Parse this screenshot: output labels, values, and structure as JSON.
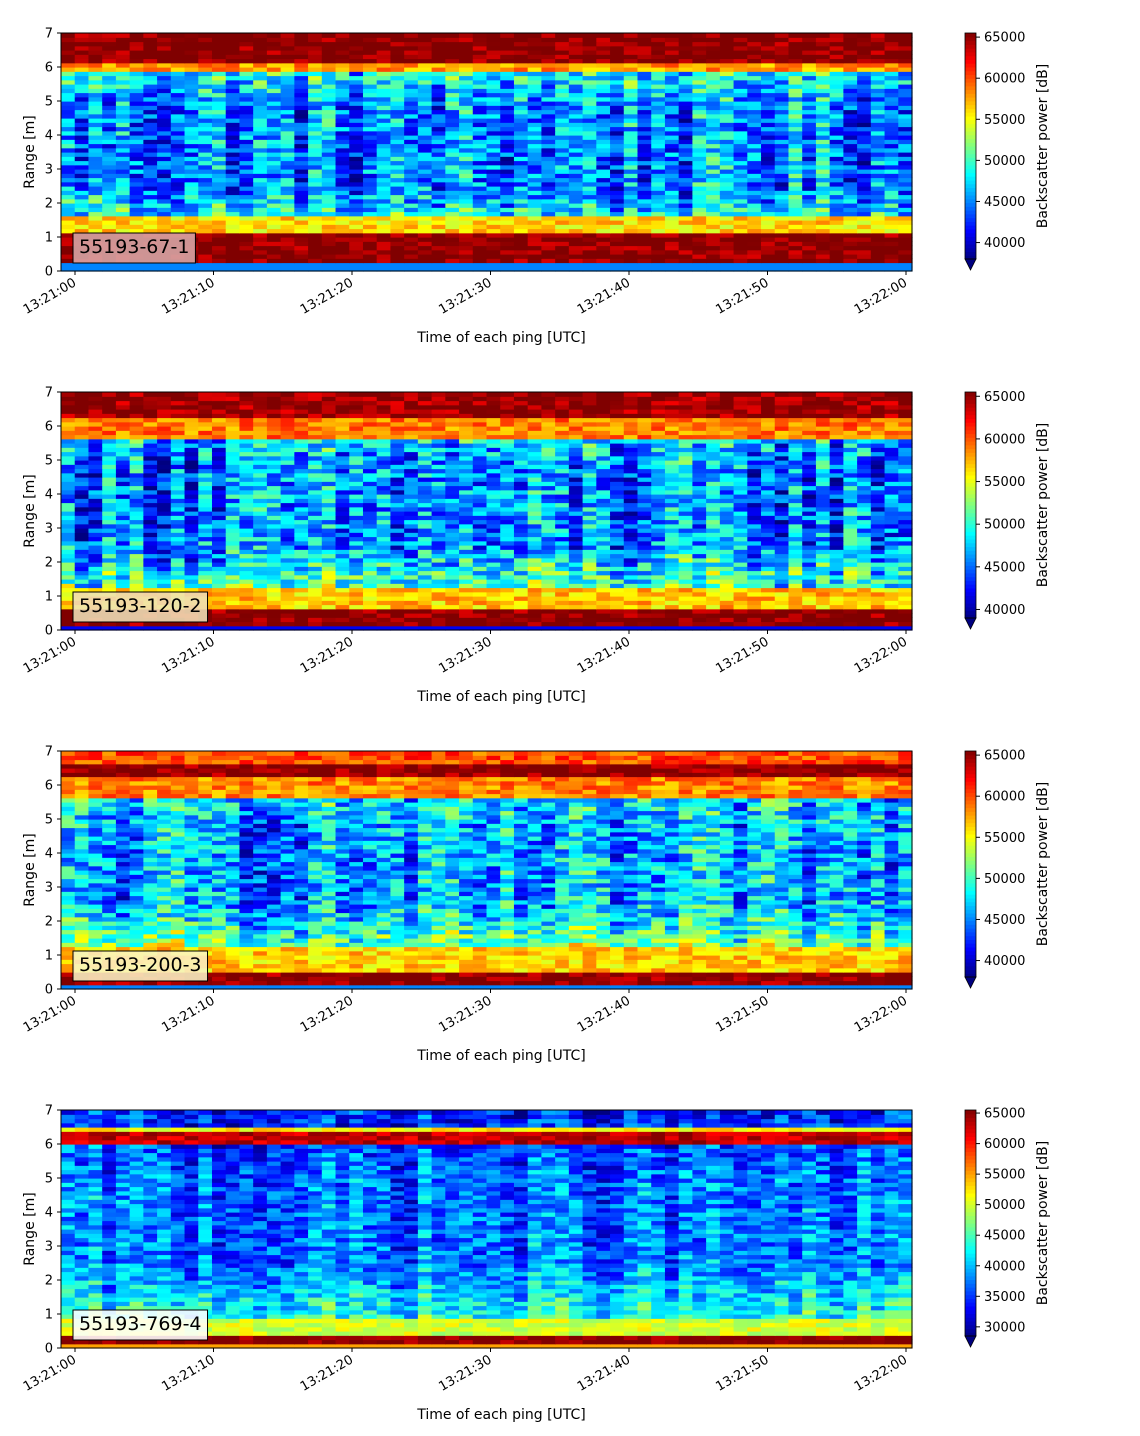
{
  "chart_data": [
    {
      "type": "heatmap",
      "label": "55193-67-1",
      "xlabel": "Time of each ping [UTC]",
      "ylabel": "Range [m]",
      "colorbar_label": "Backscatter power [dB]",
      "x_ticks": [
        "13:21:00",
        "13:21:10",
        "13:21:20",
        "13:21:30",
        "13:21:40",
        "13:21:50",
        "13:22:00"
      ],
      "y_ticks": [
        0,
        1,
        2,
        3,
        4,
        5,
        6,
        7
      ],
      "ylim": [
        0,
        7
      ],
      "colorbar_ticks": [
        40000,
        45000,
        50000,
        55000,
        60000,
        65000
      ],
      "clim": [
        38000,
        65500
      ],
      "colormap": "jet",
      "label_box_color": "#d8a8a8",
      "profile": {
        "bands": [
          [
            0.2,
            1.15,
            65500
          ],
          [
            1.15,
            1.6,
            56000
          ],
          [
            5.85,
            6.15,
            58000
          ],
          [
            6.15,
            7.0,
            65500
          ]
        ],
        "bottom_edge": [
          0,
          0.2,
          45000
        ],
        "mid": 45000,
        "near_bottom": 51000,
        "near_top": 49000
      }
    },
    {
      "type": "heatmap",
      "label": "55193-120-2",
      "xlabel": "Time of each ping [UTC]",
      "ylabel": "Range [m]",
      "colorbar_label": "Backscatter power [dB]",
      "x_ticks": [
        "13:21:00",
        "13:21:10",
        "13:21:20",
        "13:21:30",
        "13:21:40",
        "13:21:50",
        "13:22:00"
      ],
      "y_ticks": [
        0,
        1,
        2,
        3,
        4,
        5,
        6,
        7
      ],
      "ylim": [
        0,
        7
      ],
      "colorbar_ticks": [
        40000,
        45000,
        50000,
        55000,
        60000,
        65000
      ],
      "clim": [
        39000,
        65500
      ],
      "colormap": "jet",
      "label_box_color": "#efe1b8",
      "profile": {
        "bands": [
          [
            0.15,
            0.6,
            65500
          ],
          [
            0.6,
            1.3,
            57000
          ],
          [
            5.6,
            6.2,
            59000
          ],
          [
            6.2,
            7.0,
            65000
          ]
        ],
        "bottom_edge": [
          0,
          0.15,
          42000
        ],
        "mid": 45500,
        "near_bottom": 52000,
        "near_top": 48500
      }
    },
    {
      "type": "heatmap",
      "label": "55193-200-3",
      "xlabel": "Time of each ping [UTC]",
      "ylabel": "Range [m]",
      "colorbar_label": "Backscatter power [dB]",
      "x_ticks": [
        "13:21:00",
        "13:21:10",
        "13:21:20",
        "13:21:30",
        "13:21:40",
        "13:21:50",
        "13:22:00"
      ],
      "y_ticks": [
        0,
        1,
        2,
        3,
        4,
        5,
        6,
        7
      ],
      "ylim": [
        0,
        7
      ],
      "colorbar_ticks": [
        40000,
        45000,
        50000,
        55000,
        60000,
        65000
      ],
      "clim": [
        38000,
        65500
      ],
      "colormap": "jet",
      "label_box_color": "#fbf3c4",
      "profile": {
        "bands": [
          [
            0.1,
            0.5,
            65500
          ],
          [
            0.5,
            1.2,
            56500
          ],
          [
            5.6,
            6.2,
            58500
          ],
          [
            6.2,
            6.6,
            65500
          ],
          [
            6.6,
            7.0,
            60000
          ]
        ],
        "bottom_edge": [
          0,
          0.1,
          45000
        ],
        "mid": 45500,
        "near_bottom": 52000,
        "near_top": 48000
      }
    },
    {
      "type": "heatmap",
      "label": "55193-769-4",
      "xlabel": "Time of each ping [UTC]",
      "ylabel": "Range [m]",
      "colorbar_label": "Backscatter power [dB]",
      "x_ticks": [
        "13:21:00",
        "13:21:10",
        "13:21:20",
        "13:21:30",
        "13:21:40",
        "13:21:50",
        "13:22:00"
      ],
      "y_ticks": [
        0,
        1,
        2,
        3,
        4,
        5,
        6,
        7
      ],
      "ylim": [
        0,
        7
      ],
      "colorbar_ticks": [
        30000,
        35000,
        40000,
        45000,
        50000,
        55000,
        60000,
        65000
      ],
      "clim": [
        28500,
        65500
      ],
      "colormap": "jet",
      "label_box_color": "#ffffff",
      "profile": {
        "bands": [
          [
            0.15,
            0.35,
            65500
          ],
          [
            0.35,
            0.9,
            50000
          ],
          [
            6.05,
            6.35,
            63000
          ],
          [
            6.35,
            6.5,
            52000
          ]
        ],
        "bottom_edge": [
          0,
          0.15,
          55000
        ],
        "mid": 37000,
        "near_bottom": 43000,
        "near_top": 35000
      }
    }
  ]
}
